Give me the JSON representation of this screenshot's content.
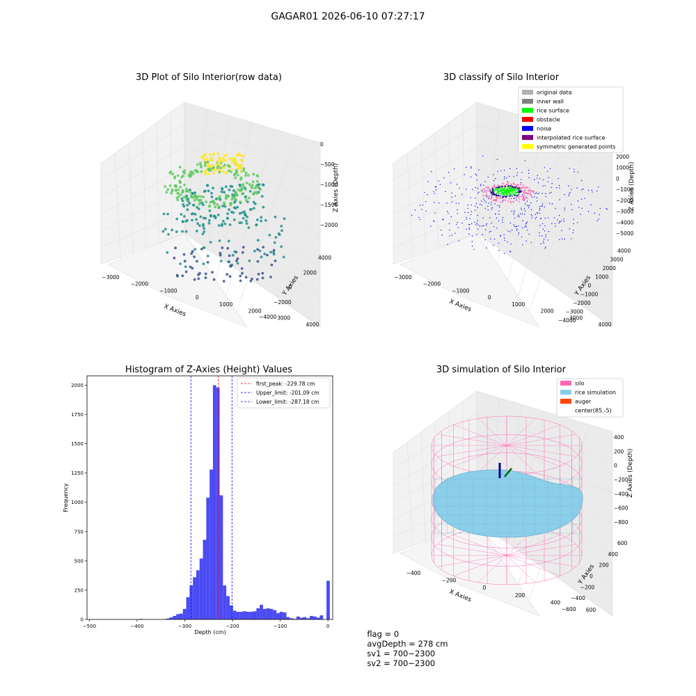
{
  "figure": {
    "suptitle": "GAGAR01 2026-06-10 07:27:17"
  },
  "panels": {
    "raw": {
      "title": "3D Plot of Silo Interior(row data)",
      "xlabel": "X Axies",
      "ylabel": "Y Axies",
      "zlabel": "Z Axies (Depth)",
      "xticks": [
        "−3000",
        "−2000",
        "−1000",
        "0",
        "1000",
        "2000",
        "3000",
        "4000"
      ],
      "yticks": [
        "4000",
        "2000",
        "0",
        "−2000",
        "−4000"
      ],
      "zticks": [
        "0",
        "−500",
        "−1000",
        "−1500",
        "−2000"
      ],
      "colormap": [
        "#440154",
        "#3b528b",
        "#21918c",
        "#5ec962",
        "#fde725"
      ]
    },
    "classify": {
      "title": "3D classify of Silo Interior",
      "xlabel": "X Axies",
      "ylabel": "Y Axies",
      "zlabel": "Z Axies (Depth)",
      "xticks": [
        "−3000",
        "−2000",
        "−1000",
        "0",
        "1000",
        "2000",
        "3000",
        "4000"
      ],
      "yticks": [
        "4000",
        "3000",
        "2000",
        "1000",
        "0",
        "−1000",
        "−2000",
        "−3000",
        "−4000"
      ],
      "zticks": [
        "2000",
        "1000",
        "0",
        "−1000",
        "−2000",
        "−3000",
        "−4000",
        "−5000"
      ],
      "legend": [
        {
          "label": "original data",
          "color": "#b0b0b0"
        },
        {
          "label": "inner wall",
          "color": "#808080"
        },
        {
          "label": "rice surface",
          "color": "#00ff00"
        },
        {
          "label": "obstacle",
          "color": "#ff0000"
        },
        {
          "label": "noise",
          "color": "#0000ff"
        },
        {
          "label": "interpolated rice surface",
          "color": "#800080"
        },
        {
          "label": "symmetric generated points",
          "color": "#ffff00"
        }
      ]
    },
    "histogram": {
      "title": "Histogram of Z-Axies (Height) Values",
      "xlabel": "Depth (cm)",
      "ylabel": "Frequency",
      "legend": [
        {
          "label": "first_peak: -229.78 cm",
          "color": "#ff0000"
        },
        {
          "label": "Upper_limit: -201.09 cm",
          "color": "#0000ff"
        },
        {
          "label": "Lower_limit: -287.18 cm",
          "color": "#0000ff"
        }
      ]
    },
    "simulation": {
      "title": "3D simulation of Silo Interior",
      "xlabel": "X Axies",
      "ylabel": "Y Axies",
      "zlabel": "Z Axies (Depth)",
      "xticks": [
        "−400",
        "−200",
        "0",
        "200",
        "400",
        "600"
      ],
      "yticks": [
        "600",
        "400",
        "200",
        "0",
        "−200",
        "−400",
        "−600"
      ],
      "zticks": [
        "400",
        "200",
        "0",
        "−200",
        "−400",
        "−600",
        "−800"
      ],
      "legend": [
        {
          "label": "silo",
          "color": "#ff69b4"
        },
        {
          "label": "rice simulation",
          "color": "#87ceeb"
        },
        {
          "label": "auger",
          "color": "#ff4500"
        },
        {
          "label": "center(85,-5)",
          "color": "#ffffff"
        }
      ]
    }
  },
  "status": {
    "flag": "flag = 0",
    "avg_depth": "avgDepth = 278 cm",
    "sv1": "sv1 = 700~2300",
    "sv2": "sv2 = 700~2300"
  },
  "chart_data": [
    {
      "type": "scatter",
      "title": "3D Plot of Silo Interior(row data)",
      "xlabel": "X Axies",
      "ylabel": "Y Axies",
      "zlabel": "Z Axies (Depth)",
      "xlim": [
        -3500,
        4500
      ],
      "ylim": [
        -4500,
        4500
      ],
      "zlim": [
        -2300,
        0
      ],
      "note": "3D point cloud of silo interior coloured by depth"
    },
    {
      "type": "scatter",
      "title": "3D classify of Silo Interior",
      "xlabel": "X Axies",
      "ylabel": "Y Axies",
      "zlabel": "Z Axies (Depth)",
      "xlim": [
        -3500,
        4500
      ],
      "ylim": [
        -4500,
        4500
      ],
      "zlim": [
        -5500,
        2500
      ],
      "series": [
        {
          "name": "original data"
        },
        {
          "name": "inner wall"
        },
        {
          "name": "rice surface"
        },
        {
          "name": "obstacle"
        },
        {
          "name": "noise"
        },
        {
          "name": "interpolated rice surface"
        },
        {
          "name": "symmetric generated points"
        }
      ]
    },
    {
      "type": "bar",
      "title": "Histogram of Z-Axies (Height) Values",
      "xlabel": "Depth (cm)",
      "ylabel": "Frequency",
      "xlim": [
        -505,
        10
      ],
      "ylim": [
        0,
        2080
      ],
      "xticks": [
        -500,
        -400,
        -300,
        -200,
        -100,
        0
      ],
      "yticks": [
        0,
        250,
        500,
        750,
        1000,
        1250,
        1500,
        1750,
        2000
      ],
      "bin_width": 7,
      "bins": [
        [
          -395,
          5
        ],
        [
          -346,
          3
        ],
        [
          -339,
          8
        ],
        [
          -332,
          17
        ],
        [
          -325,
          30
        ],
        [
          -318,
          45
        ],
        [
          -311,
          50
        ],
        [
          -304,
          90
        ],
        [
          -297,
          190
        ],
        [
          -290,
          290
        ],
        [
          -283,
          360
        ],
        [
          -276,
          420
        ],
        [
          -269,
          520
        ],
        [
          -262,
          680
        ],
        [
          -255,
          1040
        ],
        [
          -248,
          1280
        ],
        [
          -241,
          2000
        ],
        [
          -234,
          1980
        ],
        [
          -227,
          1060
        ],
        [
          -220,
          290
        ],
        [
          -213,
          200
        ],
        [
          -206,
          120
        ],
        [
          -199,
          75
        ],
        [
          -192,
          65
        ],
        [
          -185,
          65
        ],
        [
          -178,
          70
        ],
        [
          -171,
          65
        ],
        [
          -164,
          65
        ],
        [
          -157,
          70
        ],
        [
          -150,
          95
        ],
        [
          -143,
          125
        ],
        [
          -136,
          90
        ],
        [
          -129,
          95
        ],
        [
          -122,
          90
        ],
        [
          -115,
          80
        ],
        [
          -108,
          55
        ],
        [
          -101,
          65
        ],
        [
          -94,
          60
        ],
        [
          -87,
          20
        ],
        [
          -80,
          10
        ],
        [
          -73,
          5
        ],
        [
          -66,
          25
        ],
        [
          -59,
          15
        ],
        [
          -52,
          20
        ],
        [
          -45,
          10
        ],
        [
          -38,
          30
        ],
        [
          -31,
          25
        ],
        [
          -24,
          15
        ],
        [
          -17,
          35
        ],
        [
          -3,
          330
        ]
      ],
      "vlines": [
        {
          "label": "first_peak: -229.78 cm",
          "x": -229.78,
          "color": "#ff0000"
        },
        {
          "label": "Upper_limit: -201.09 cm",
          "x": -201.09,
          "color": "#0000ff"
        },
        {
          "label": "Lower_limit: -287.18 cm",
          "x": -287.18,
          "color": "#0000ff"
        }
      ],
      "bar_color": "#4b4bf5",
      "legend_position": "top-right"
    },
    {
      "type": "surface",
      "title": "3D simulation of Silo Interior",
      "xlabel": "X Axies",
      "ylabel": "Y Axies",
      "zlabel": "Z Axies (Depth)",
      "xlim": [
        -500,
        700
      ],
      "ylim": [
        -650,
        650
      ],
      "zlim": [
        -900,
        450
      ],
      "series": [
        {
          "name": "silo"
        },
        {
          "name": "rice simulation"
        },
        {
          "name": "auger"
        },
        {
          "name": "center(85,-5)"
        }
      ]
    }
  ]
}
